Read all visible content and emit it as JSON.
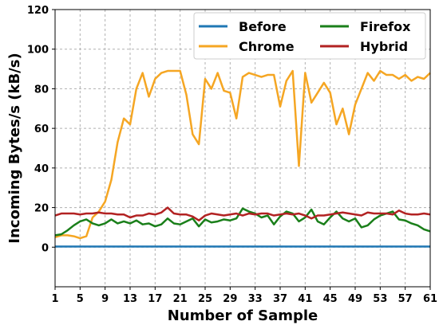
{
  "chart_data": {
    "type": "line",
    "title": "",
    "xlabel": "Number of Sample",
    "ylabel": "Incoming Bytes/s (kB/s)",
    "xlim": [
      1,
      61
    ],
    "ylim": [
      -20,
      120
    ],
    "x_ticks": [
      1,
      5,
      9,
      13,
      17,
      21,
      25,
      29,
      33,
      37,
      41,
      45,
      49,
      53,
      57,
      61
    ],
    "y_ticks": [
      0,
      20,
      40,
      60,
      80,
      100,
      120
    ],
    "grid": true,
    "legend_position": "top-right",
    "series": [
      {
        "name": "Before",
        "color": "#1f77b4",
        "values": [
          0.3,
          0.3,
          0.3,
          0.3,
          0.3,
          0.3,
          0.3,
          0.3,
          0.3,
          0.3,
          0.3,
          0.3,
          0.3,
          0.3,
          0.3,
          0.3,
          0.3,
          0.3,
          0.3,
          0.3,
          0.3,
          0.3,
          0.3,
          0.3,
          0.3,
          0.3,
          0.3,
          0.3,
          0.3,
          0.3,
          0.3,
          0.3,
          0.3,
          0.3,
          0.3,
          0.3,
          0.3,
          0.3,
          0.3,
          0.3,
          0.3,
          0.3,
          0.3,
          0.3,
          0.3,
          0.3,
          0.3,
          0.3,
          0.3,
          0.3,
          0.3,
          0.3,
          0.3,
          0.3,
          0.3,
          0.3,
          0.3,
          0.3,
          0.3,
          0.3,
          0.3
        ]
      },
      {
        "name": "Chrome",
        "color": "#f5a623",
        "values": [
          5,
          6,
          6,
          5.5,
          4.5,
          5.5,
          15,
          18,
          23,
          34,
          53,
          65,
          62,
          80,
          88,
          76,
          85,
          88,
          89,
          89,
          89,
          77,
          57,
          52,
          85,
          80,
          88,
          79,
          78,
          65,
          86,
          88,
          87,
          86,
          87,
          87,
          71,
          84,
          89,
          41,
          88,
          73,
          78,
          83,
          78,
          62,
          70,
          57,
          72,
          80,
          88,
          84,
          89,
          87,
          87,
          85,
          87,
          84,
          86,
          85,
          88
        ]
      },
      {
        "name": "Firefox",
        "color": "#1a7f1a",
        "values": [
          6,
          6.5,
          8.5,
          11,
          13,
          14,
          12,
          11,
          12,
          14,
          12,
          13,
          12,
          13.5,
          11.5,
          12,
          10.5,
          11.5,
          14.5,
          12,
          11.5,
          13,
          14.5,
          10.5,
          14,
          12.5,
          13,
          14,
          13.5,
          14.5,
          19.5,
          18,
          17,
          15,
          16,
          11.5,
          15.5,
          18,
          17,
          13,
          15,
          19,
          13,
          11.5,
          15,
          18,
          14.5,
          13,
          14.5,
          10,
          11,
          14,
          16,
          17,
          18,
          14,
          13.5,
          12,
          11,
          9,
          8
        ]
      },
      {
        "name": "Hybrid",
        "color": "#b22222",
        "values": [
          16,
          17,
          17,
          17,
          16.5,
          17,
          17,
          17.5,
          17,
          17,
          16.5,
          16.5,
          15,
          16,
          16,
          17,
          16.5,
          17.5,
          20,
          17,
          16.5,
          16.5,
          15.5,
          13.5,
          16,
          17,
          16.5,
          16,
          16.5,
          17,
          16,
          17,
          16.5,
          17,
          17,
          16,
          16.5,
          17,
          16.5,
          17,
          16,
          14.5,
          16,
          16,
          16.5,
          17,
          17.5,
          17,
          16.5,
          16,
          17.5,
          17,
          17,
          17,
          16.5,
          18.5,
          17,
          16.5,
          16.5,
          17,
          16.5
        ]
      }
    ]
  }
}
